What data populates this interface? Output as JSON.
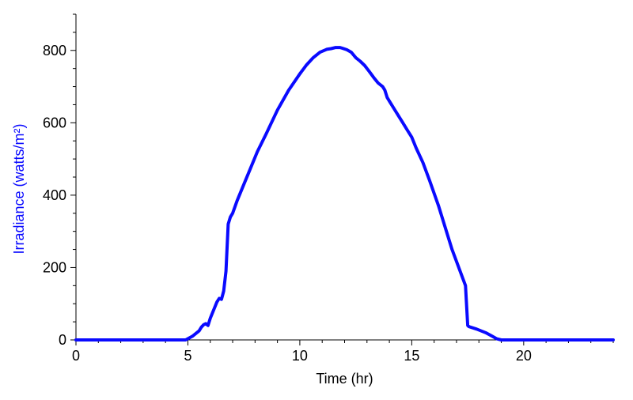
{
  "chart_data": {
    "type": "line",
    "title": "",
    "xlabel": "Time (hr)",
    "ylabel": "Irradiance (watts/m²)",
    "xlim": [
      0,
      24
    ],
    "ylim": [
      0,
      900
    ],
    "x_ticks": [
      0,
      5,
      10,
      15,
      20
    ],
    "y_ticks": [
      0,
      200,
      400,
      600,
      800
    ],
    "grid": false,
    "legend": "none",
    "colors": {
      "line": "#0a0aff",
      "ylabel": "#0a0aff",
      "axis": "#000000"
    },
    "series": [
      {
        "x": [
          0,
          4.9,
          5.2,
          5.5,
          5.6,
          5.7,
          5.8,
          5.9,
          6.0,
          6.2,
          6.3,
          6.4,
          6.5,
          6.6,
          6.7,
          6.8,
          6.9,
          7.0,
          7.2,
          7.5,
          7.8,
          8.1,
          8.5,
          9.0,
          9.5,
          10.0,
          10.3,
          10.6,
          10.9,
          11.2,
          11.4,
          11.6,
          11.7,
          11.8,
          11.9,
          12.1,
          12.3,
          12.5,
          12.7,
          12.9,
          13.0,
          13.1,
          13.3,
          13.5,
          13.7,
          13.8,
          13.9,
          14.0,
          14.2,
          14.4,
          14.6,
          14.8,
          15.0,
          15.2,
          15.5,
          15.8,
          16.2,
          16.5,
          16.8,
          17.1,
          17.4,
          17.5,
          17.55,
          17.9,
          18.3,
          18.6,
          18.8,
          19.0,
          20.0,
          24.0
        ],
        "values": [
          0,
          0,
          10,
          25,
          35,
          42,
          45,
          40,
          60,
          90,
          105,
          115,
          112,
          135,
          190,
          320,
          340,
          350,
          385,
          430,
          475,
          520,
          570,
          635,
          690,
          735,
          760,
          780,
          795,
          803,
          805,
          808,
          808,
          808,
          806,
          802,
          795,
          780,
          770,
          758,
          750,
          742,
          725,
          710,
          700,
          690,
          670,
          660,
          640,
          620,
          600,
          580,
          560,
          530,
          490,
          440,
          370,
          310,
          250,
          200,
          150,
          40,
          37,
          30,
          20,
          10,
          3,
          0,
          0,
          0
        ]
      }
    ]
  }
}
